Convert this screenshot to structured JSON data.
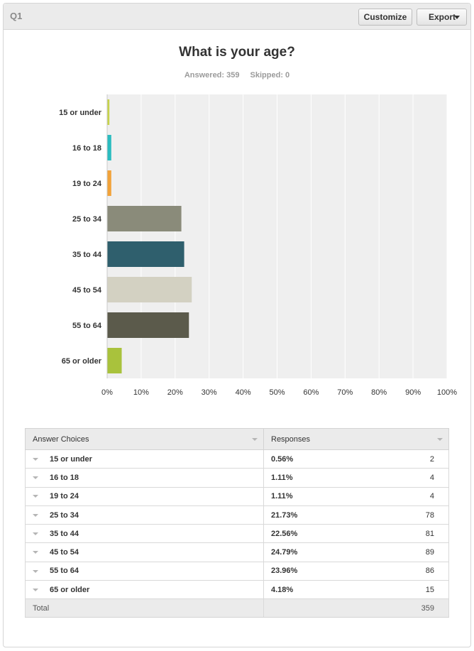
{
  "header": {
    "question_id": "Q1",
    "customize_label": "Customize",
    "export_label": "Export"
  },
  "chart_data": {
    "type": "bar",
    "orientation": "horizontal",
    "title": "What is your age?",
    "answered_label": "Answered: 359",
    "skipped_label": "Skipped: 0",
    "categories": [
      "15 or under",
      "16 to 18",
      "19 to 24",
      "25 to 34",
      "35 to 44",
      "45 to 54",
      "55 to 64",
      "65 or older"
    ],
    "values": [
      0.56,
      1.11,
      1.11,
      21.73,
      22.56,
      24.79,
      23.96,
      4.18
    ],
    "colors": [
      "#c7d34b",
      "#2bbcc0",
      "#f2a33a",
      "#8a8b7a",
      "#2f5f6d",
      "#d3d1c2",
      "#5b5a4b",
      "#a9c23c"
    ],
    "xlim": [
      0,
      100
    ],
    "xticks": [
      "0%",
      "10%",
      "20%",
      "30%",
      "40%",
      "50%",
      "60%",
      "70%",
      "80%",
      "90%",
      "100%"
    ],
    "grid": true
  },
  "table": {
    "col_choices": "Answer Choices",
    "col_responses": "Responses",
    "rows": [
      {
        "choice": "15 or under",
        "pct": "0.56%",
        "count": "2"
      },
      {
        "choice": "16 to 18",
        "pct": "1.11%",
        "count": "4"
      },
      {
        "choice": "19 to 24",
        "pct": "1.11%",
        "count": "4"
      },
      {
        "choice": "25 to 34",
        "pct": "21.73%",
        "count": "78"
      },
      {
        "choice": "35 to 44",
        "pct": "22.56%",
        "count": "81"
      },
      {
        "choice": "45 to 54",
        "pct": "24.79%",
        "count": "89"
      },
      {
        "choice": "55 to 64",
        "pct": "23.96%",
        "count": "86"
      },
      {
        "choice": "65 or older",
        "pct": "4.18%",
        "count": "15"
      }
    ],
    "total_label": "Total",
    "total_count": "359"
  }
}
